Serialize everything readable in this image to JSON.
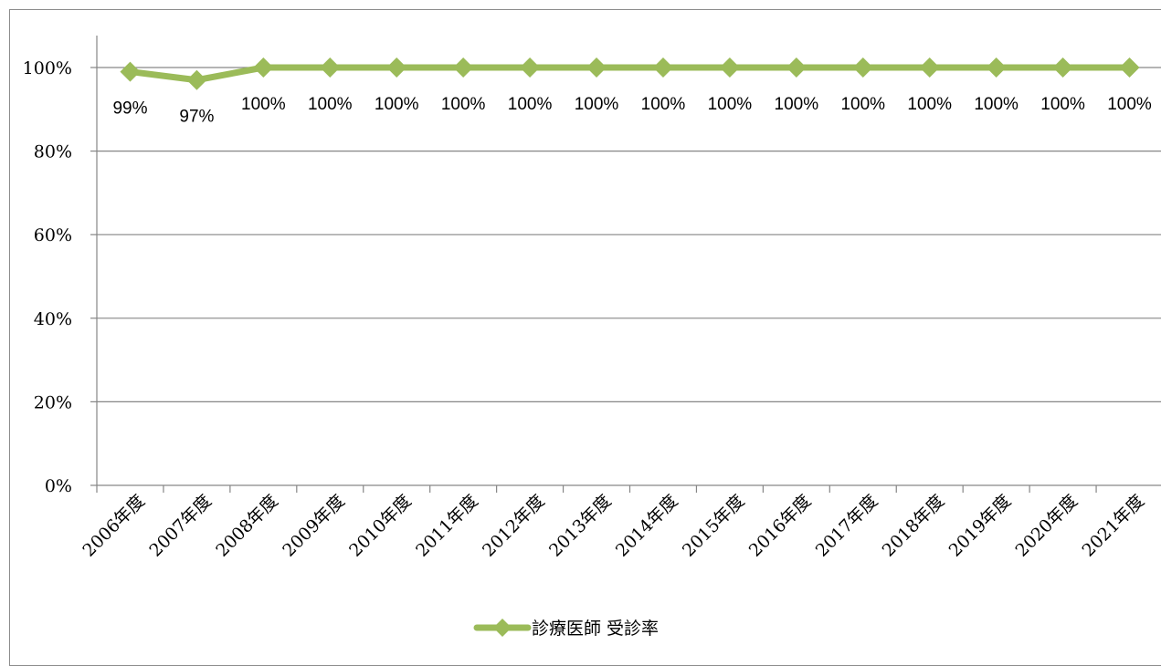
{
  "chart_data": {
    "type": "line",
    "categories": [
      "2006年度",
      "2007年度",
      "2008年度",
      "2009年度",
      "2010年度",
      "2011年度",
      "2012年度",
      "2013年度",
      "2014年度",
      "2015年度",
      "2016年度",
      "2017年度",
      "2018年度",
      "2019年度",
      "2020年度",
      "2021年度"
    ],
    "series": [
      {
        "name": "診療医師 受診率",
        "values": [
          99,
          97,
          100,
          100,
          100,
          100,
          100,
          100,
          100,
          100,
          100,
          100,
          100,
          100,
          100,
          100
        ],
        "data_labels": [
          "99%",
          "97%",
          "100%",
          "100%",
          "100%",
          "100%",
          "100%",
          "100%",
          "100%",
          "100%",
          "100%",
          "100%",
          "100%",
          "100%",
          "100%",
          "100%"
        ],
        "color": "#9bbb59"
      }
    ],
    "y_ticks": [
      "0%",
      "20%",
      "40%",
      "60%",
      "80%",
      "100%"
    ],
    "ylim": [
      0,
      100
    ],
    "grid": true,
    "legend": "bottom",
    "gridline_color": "#868686",
    "axis_color": "#868686"
  }
}
